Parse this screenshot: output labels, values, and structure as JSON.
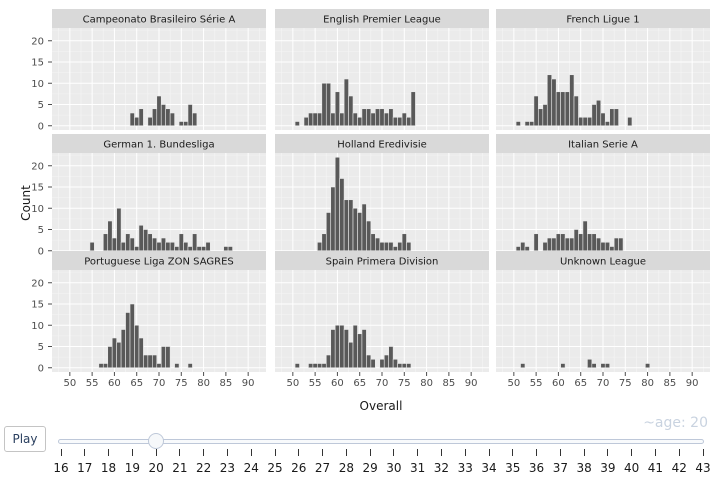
{
  "chart_data": {
    "type": "bar",
    "subtype": "faceted-histogram",
    "xlabel": "Overall",
    "ylabel": "Count",
    "xlim": [
      46,
      94
    ],
    "ylim": [
      -1,
      23
    ],
    "x_ticks": [
      "50",
      "55",
      "60",
      "65",
      "70",
      "75",
      "80",
      "85",
      "90"
    ],
    "y_ticks": [
      "0",
      "5",
      "10",
      "15",
      "20"
    ],
    "grid": true,
    "facets": [
      {
        "title": "Campeonato Brasileiro Série A",
        "bars": [
          [
            64,
            3
          ],
          [
            65,
            2
          ],
          [
            66,
            4
          ],
          [
            68,
            2
          ],
          [
            69,
            4
          ],
          [
            70,
            7
          ],
          [
            71,
            5
          ],
          [
            72,
            4
          ],
          [
            73,
            3
          ],
          [
            75,
            1
          ],
          [
            76,
            1
          ],
          [
            77,
            5
          ],
          [
            78,
            3
          ]
        ]
      },
      {
        "title": "English Premier League",
        "bars": [
          [
            51,
            1
          ],
          [
            53,
            2
          ],
          [
            54,
            3
          ],
          [
            55,
            3
          ],
          [
            56,
            3
          ],
          [
            57,
            10
          ],
          [
            58,
            10
          ],
          [
            59,
            3
          ],
          [
            60,
            8
          ],
          [
            61,
            3
          ],
          [
            62,
            11
          ],
          [
            63,
            7
          ],
          [
            64,
            3
          ],
          [
            65,
            2
          ],
          [
            66,
            4
          ],
          [
            67,
            4
          ],
          [
            68,
            3
          ],
          [
            69,
            4
          ],
          [
            70,
            4
          ],
          [
            71,
            3
          ],
          [
            72,
            4
          ],
          [
            73,
            2
          ],
          [
            74,
            2
          ],
          [
            75,
            3
          ],
          [
            76,
            2
          ],
          [
            77,
            8
          ]
        ]
      },
      {
        "title": "French Ligue 1",
        "bars": [
          [
            51,
            1
          ],
          [
            53,
            1
          ],
          [
            54,
            1
          ],
          [
            55,
            7
          ],
          [
            56,
            4
          ],
          [
            57,
            5
          ],
          [
            58,
            12
          ],
          [
            59,
            11
          ],
          [
            60,
            8
          ],
          [
            61,
            8
          ],
          [
            62,
            8
          ],
          [
            63,
            12
          ],
          [
            64,
            7
          ],
          [
            65,
            2
          ],
          [
            66,
            2
          ],
          [
            67,
            2
          ],
          [
            68,
            5
          ],
          [
            69,
            6
          ],
          [
            70,
            3
          ],
          [
            71,
            1
          ],
          [
            72,
            4
          ],
          [
            73,
            4
          ],
          [
            76,
            2
          ]
        ]
      },
      {
        "title": "German 1. Bundesliga",
        "bars": [
          [
            55,
            2
          ],
          [
            58,
            4
          ],
          [
            59,
            7
          ],
          [
            60,
            3
          ],
          [
            61,
            10
          ],
          [
            62,
            2
          ],
          [
            63,
            4
          ],
          [
            64,
            3
          ],
          [
            65,
            1
          ],
          [
            66,
            6
          ],
          [
            67,
            5
          ],
          [
            68,
            4
          ],
          [
            69,
            3
          ],
          [
            70,
            2
          ],
          [
            71,
            3
          ],
          [
            72,
            2
          ],
          [
            73,
            2
          ],
          [
            74,
            1
          ],
          [
            75,
            4
          ],
          [
            76,
            2
          ],
          [
            77,
            1
          ],
          [
            78,
            4
          ],
          [
            79,
            1
          ],
          [
            80,
            1
          ],
          [
            81,
            2
          ],
          [
            85,
            1
          ],
          [
            86,
            1
          ]
        ]
      },
      {
        "title": "Holland Eredivisie",
        "bars": [
          [
            56,
            2
          ],
          [
            57,
            4
          ],
          [
            58,
            9
          ],
          [
            59,
            15
          ],
          [
            60,
            22
          ],
          [
            61,
            17
          ],
          [
            62,
            12
          ],
          [
            63,
            12
          ],
          [
            64,
            10
          ],
          [
            65,
            9
          ],
          [
            66,
            11
          ],
          [
            67,
            7
          ],
          [
            68,
            4
          ],
          [
            69,
            3
          ],
          [
            70,
            2
          ],
          [
            71,
            2
          ],
          [
            72,
            2
          ],
          [
            73,
            1
          ],
          [
            74,
            2
          ],
          [
            75,
            4
          ],
          [
            76,
            2
          ]
        ]
      },
      {
        "title": "Italian Serie A",
        "bars": [
          [
            51,
            1
          ],
          [
            52,
            2
          ],
          [
            53,
            1
          ],
          [
            55,
            4
          ],
          [
            57,
            2
          ],
          [
            58,
            3
          ],
          [
            59,
            3
          ],
          [
            60,
            4
          ],
          [
            61,
            4
          ],
          [
            62,
            3
          ],
          [
            63,
            3
          ],
          [
            64,
            5
          ],
          [
            65,
            4
          ],
          [
            66,
            7
          ],
          [
            67,
            4
          ],
          [
            68,
            4
          ],
          [
            69,
            3
          ],
          [
            70,
            2
          ],
          [
            71,
            2
          ],
          [
            72,
            1
          ],
          [
            73,
            3
          ],
          [
            74,
            3
          ]
        ]
      },
      {
        "title": "Portuguese Liga ZON SAGRES",
        "bars": [
          [
            57,
            1
          ],
          [
            58,
            1
          ],
          [
            59,
            5
          ],
          [
            60,
            7
          ],
          [
            61,
            6
          ],
          [
            62,
            9
          ],
          [
            63,
            13
          ],
          [
            64,
            15
          ],
          [
            65,
            10
          ],
          [
            66,
            7
          ],
          [
            67,
            3
          ],
          [
            68,
            3
          ],
          [
            69,
            3
          ],
          [
            70,
            1
          ],
          [
            71,
            5
          ],
          [
            72,
            5
          ],
          [
            74,
            1
          ],
          [
            77,
            1
          ]
        ]
      },
      {
        "title": "Spain Primera Division",
        "bars": [
          [
            51,
            1
          ],
          [
            54,
            1
          ],
          [
            55,
            1
          ],
          [
            56,
            1
          ],
          [
            57,
            1
          ],
          [
            58,
            3
          ],
          [
            59,
            9
          ],
          [
            60,
            10
          ],
          [
            61,
            10
          ],
          [
            62,
            9
          ],
          [
            63,
            6
          ],
          [
            64,
            10
          ],
          [
            65,
            8
          ],
          [
            66,
            9
          ],
          [
            67,
            3
          ],
          [
            68,
            2
          ],
          [
            70,
            2
          ],
          [
            71,
            3
          ],
          [
            72,
            5
          ],
          [
            73,
            2
          ],
          [
            74,
            1
          ],
          [
            75,
            1
          ],
          [
            76,
            1
          ]
        ]
      },
      {
        "title": "Unknown League",
        "bars": [
          [
            52,
            1
          ],
          [
            61,
            1
          ],
          [
            67,
            2
          ],
          [
            68,
            1
          ],
          [
            70,
            1
          ],
          [
            71,
            1
          ],
          [
            80,
            1
          ]
        ]
      }
    ]
  },
  "controls": {
    "play_label": "Play",
    "frame_label": "~age: 20",
    "current_step": "20",
    "steps": [
      "16",
      "17",
      "18",
      "19",
      "20",
      "21",
      "22",
      "23",
      "24",
      "25",
      "26",
      "27",
      "28",
      "29",
      "30",
      "31",
      "32",
      "33",
      "34",
      "35",
      "36",
      "37",
      "38",
      "39",
      "40",
      "41",
      "42",
      "43"
    ]
  }
}
